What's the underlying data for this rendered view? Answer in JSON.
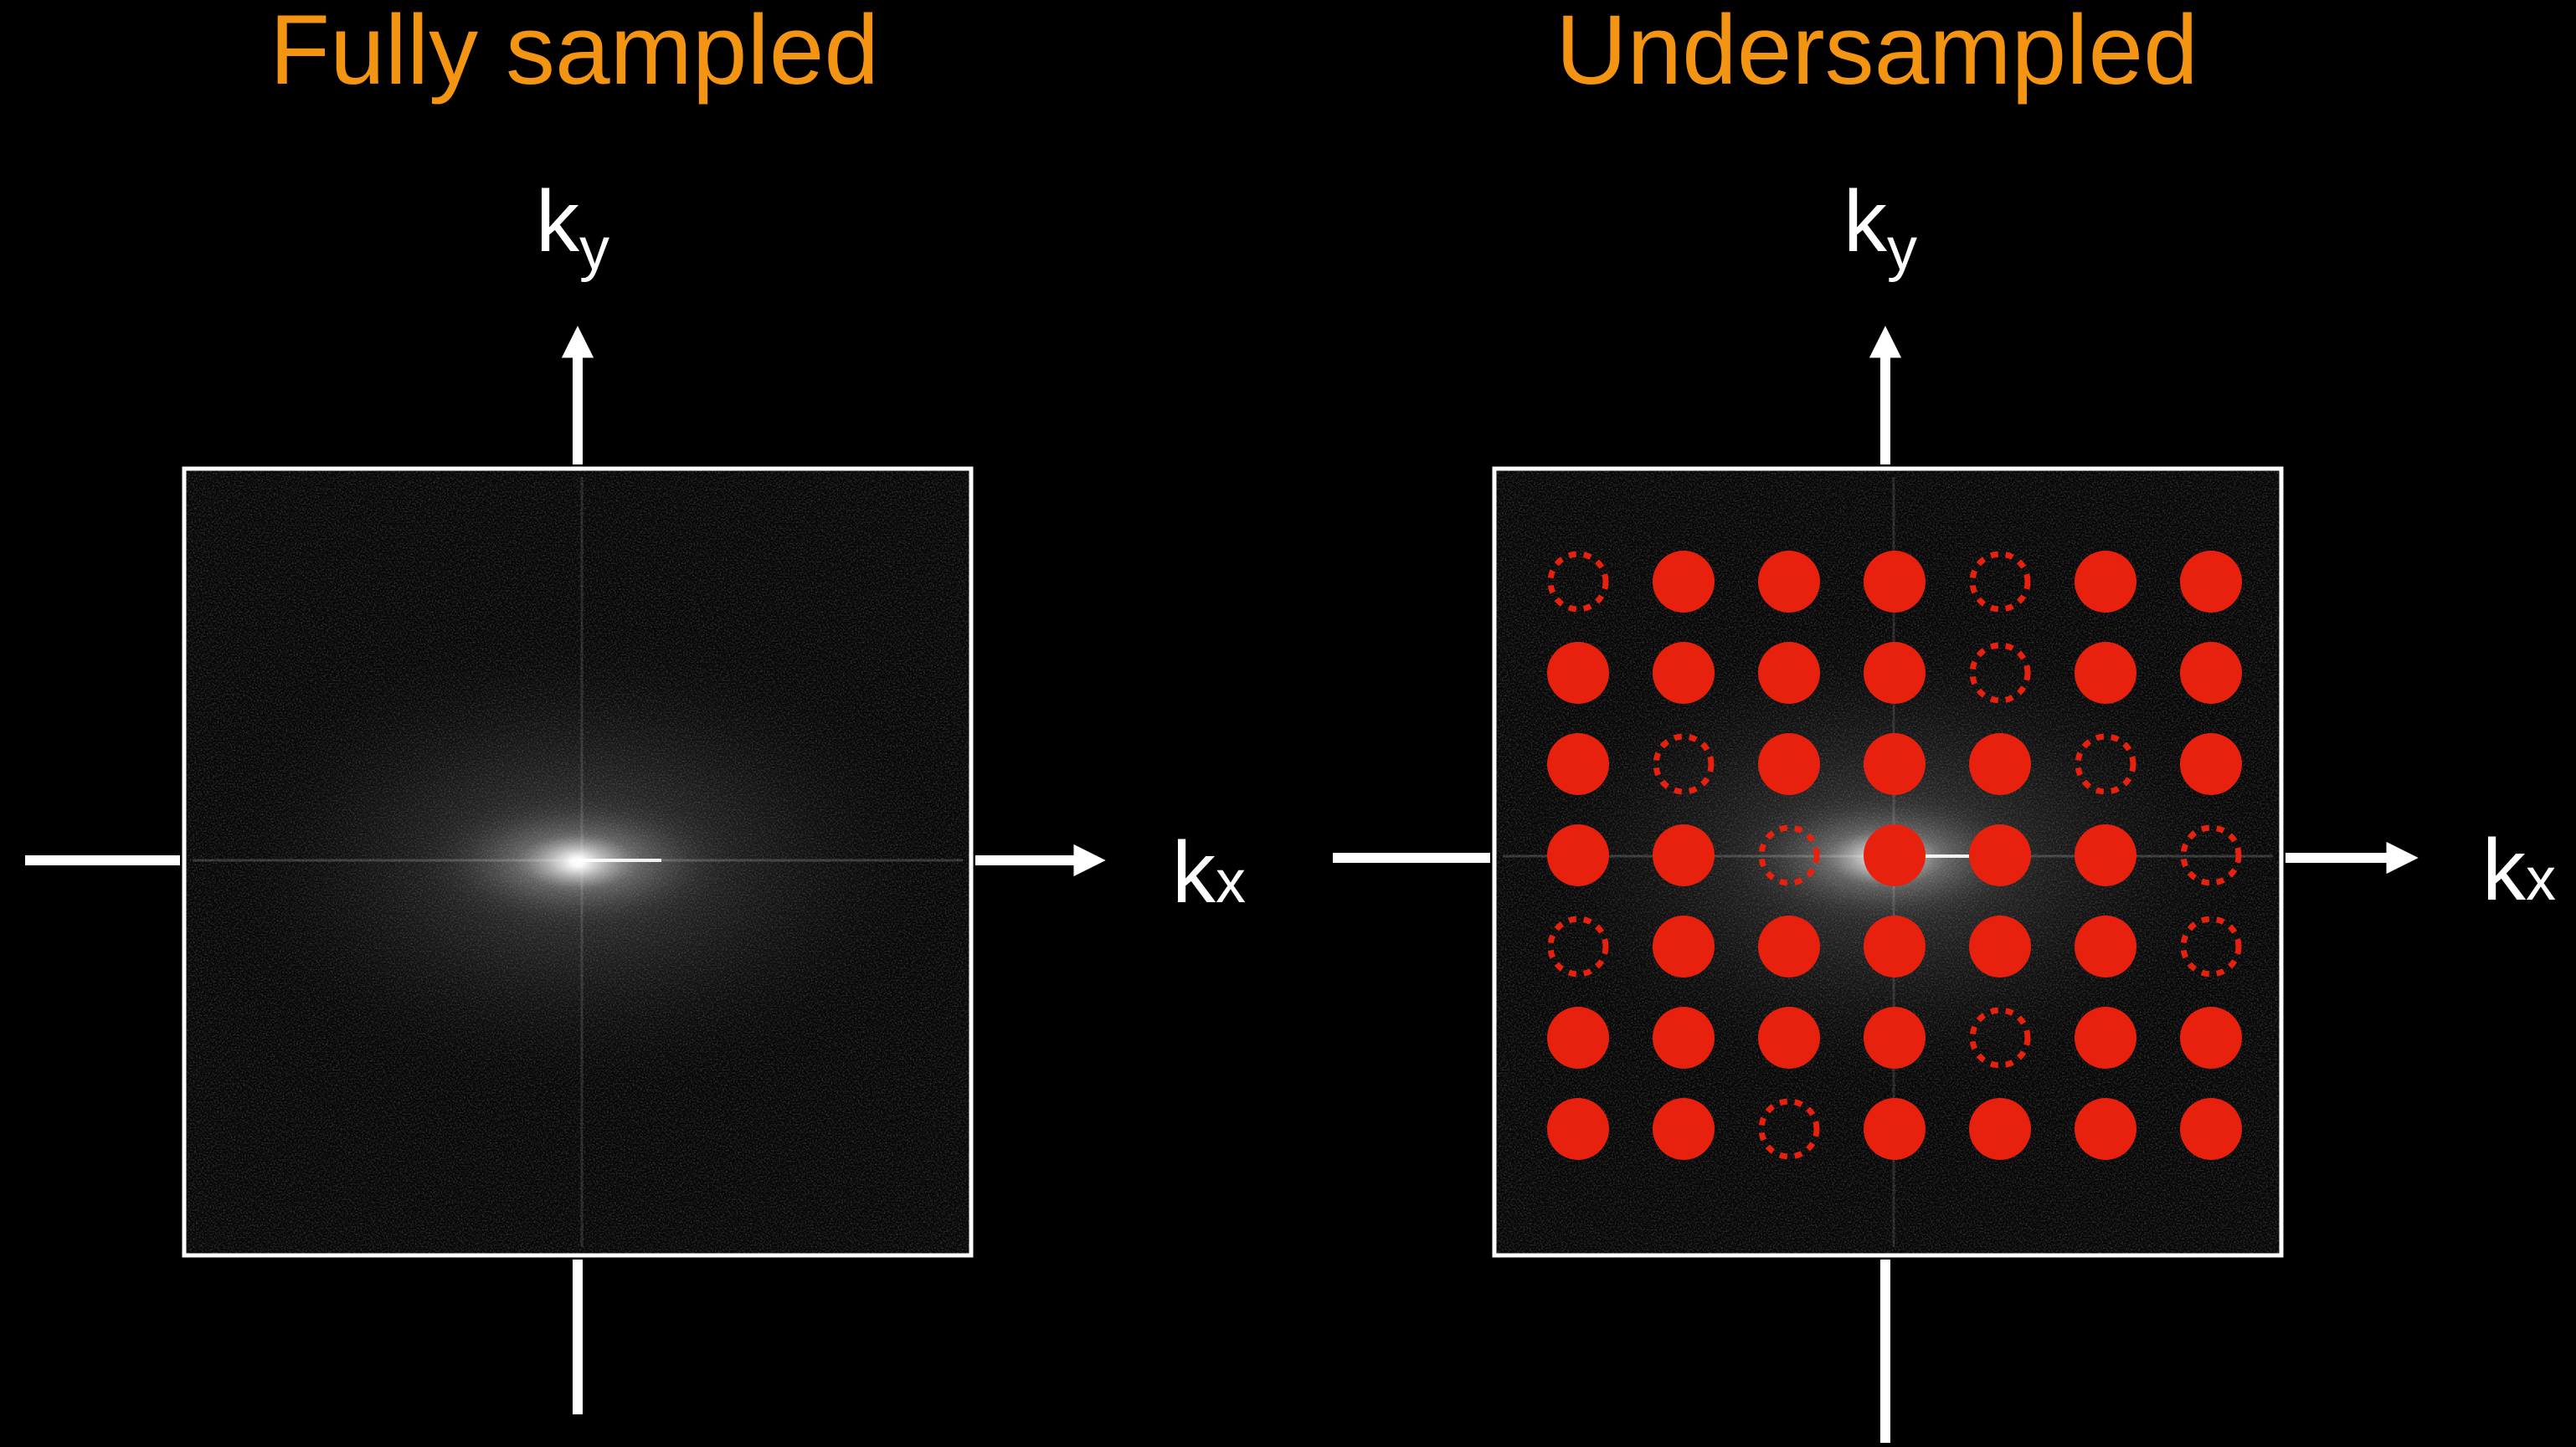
{
  "colors": {
    "background": "#000000",
    "title": "#F39512",
    "axis": "#FFFFFF",
    "frame": "#FFFFFF",
    "sample": "#E8210F"
  },
  "panels": [
    {
      "title": "Fully sampled",
      "ky_base": "k",
      "ky_sub": "y",
      "kx_base": "k",
      "kx_sub": "x",
      "sampling_grid": null
    },
    {
      "title": "Undersampled",
      "ky_base": "k",
      "ky_sub": "y",
      "kx_base": "k",
      "kx_sub": "x",
      "sampling_grid": {
        "legend": {
          "1": "sampled",
          "0": "skipped"
        },
        "rows": [
          [
            0,
            1,
            1,
            1,
            0,
            1,
            1
          ],
          [
            1,
            1,
            1,
            1,
            0,
            1,
            1
          ],
          [
            1,
            0,
            1,
            1,
            1,
            0,
            1
          ],
          [
            1,
            1,
            0,
            1,
            1,
            1,
            0
          ],
          [
            0,
            1,
            1,
            1,
            1,
            1,
            0
          ],
          [
            1,
            1,
            1,
            1,
            0,
            1,
            1
          ],
          [
            1,
            1,
            0,
            1,
            1,
            1,
            1
          ]
        ]
      }
    }
  ]
}
